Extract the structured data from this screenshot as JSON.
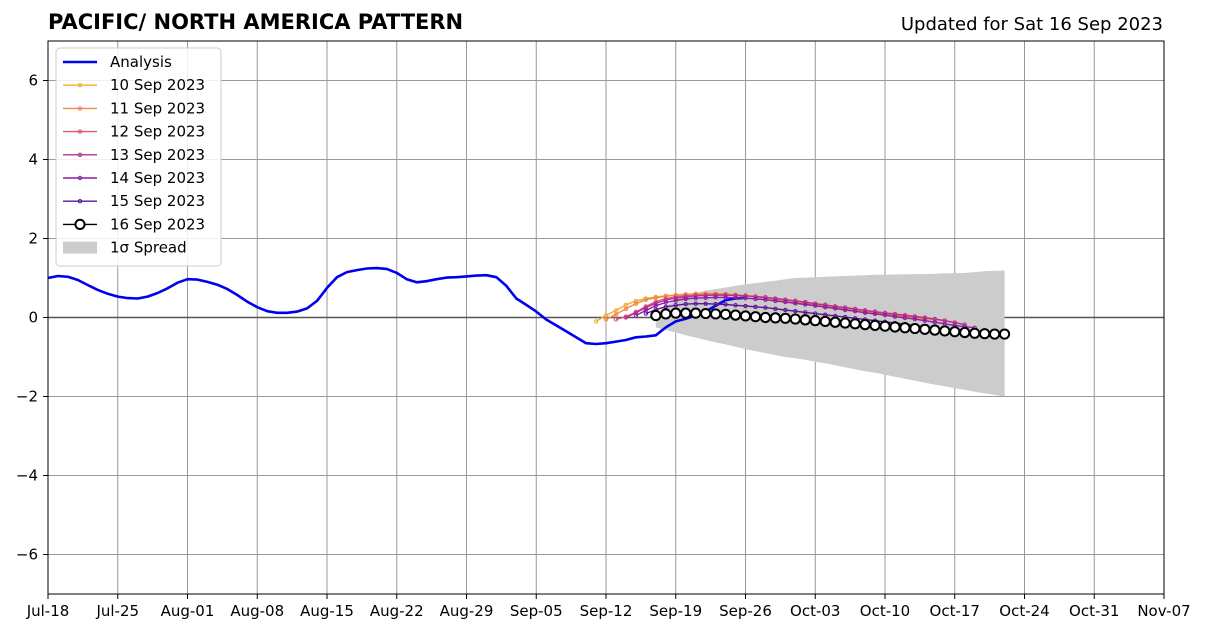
{
  "chart_data": {
    "type": "line",
    "title": "PACIFIC/ NORTH AMERICA PATTERN",
    "subtitle": "Updated for Sat 16 Sep 2023",
    "xlabel": "",
    "ylabel": "",
    "xlim": [
      "2023-07-18",
      "2023-11-07"
    ],
    "ylim": [
      -7,
      7
    ],
    "x_ticks": [
      "Jul-18",
      "Jul-25",
      "Aug-01",
      "Aug-08",
      "Aug-15",
      "Aug-22",
      "Aug-29",
      "Sep-05",
      "Sep-12",
      "Sep-19",
      "Sep-26",
      "Oct-03",
      "Oct-10",
      "Oct-17",
      "Oct-24",
      "Oct-31",
      "Nov-07"
    ],
    "y_ticks": [
      "6",
      "4",
      "2",
      "0",
      "−2",
      "−4",
      "−6"
    ],
    "y_tick_values": [
      6,
      4,
      2,
      0,
      -2,
      -4,
      -6
    ],
    "grid": true,
    "legend_position": "top-left",
    "analysis": {
      "name": "Analysis",
      "color": "#0000ee",
      "start": "2023-07-18",
      "values": [
        1.0,
        1.05,
        1.03,
        0.95,
        0.82,
        0.7,
        0.6,
        0.53,
        0.49,
        0.48,
        0.53,
        0.62,
        0.74,
        0.88,
        0.97,
        0.96,
        0.9,
        0.83,
        0.72,
        0.57,
        0.4,
        0.26,
        0.16,
        0.12,
        0.12,
        0.15,
        0.23,
        0.42,
        0.75,
        1.02,
        1.15,
        1.2,
        1.24,
        1.25,
        1.23,
        1.13,
        0.97,
        0.89,
        0.92,
        0.97,
        1.01,
        1.02,
        1.04,
        1.06,
        1.07,
        1.02,
        0.8,
        0.48,
        0.32,
        0.15,
        -0.05,
        -0.2,
        -0.35,
        -0.5,
        -0.65,
        -0.67,
        -0.65,
        -0.61,
        -0.57,
        -0.5,
        -0.48,
        -0.45,
        -0.25,
        -0.1,
        -0.03,
        0.05,
        0.15,
        0.3,
        0.44,
        0.48,
        0.5
      ]
    },
    "forecasts": [
      {
        "name": "10 Sep 2023",
        "color": "#f5ac34",
        "start": "2023-09-11",
        "values": [
          -0.1,
          0.05,
          0.18,
          0.32,
          0.42,
          0.48,
          0.52,
          0.55,
          0.57,
          0.59,
          0.6,
          0.61,
          0.61,
          0.6,
          0.58,
          0.56,
          0.53,
          0.5,
          0.46,
          0.42,
          0.38,
          0.35,
          0.32,
          0.28,
          0.24,
          0.21,
          0.17,
          0.14,
          0.1,
          0.07,
          0.04,
          0.01,
          -0.02,
          -0.04,
          -0.06
        ]
      },
      {
        "name": "11 Sep 2023",
        "color": "#f0884a",
        "start": "2023-09-12",
        "values": [
          -0.05,
          0.08,
          0.22,
          0.35,
          0.45,
          0.5,
          0.54,
          0.56,
          0.58,
          0.6,
          0.6,
          0.6,
          0.59,
          0.57,
          0.55,
          0.52,
          0.49,
          0.46,
          0.42,
          0.39,
          0.35,
          0.32,
          0.28,
          0.25,
          0.21,
          0.18,
          0.15,
          0.12,
          0.09,
          0.06,
          0.03,
          0.0,
          -0.02,
          -0.05,
          -0.08
        ]
      },
      {
        "name": "12 Sep 2023",
        "color": "#dc5a72",
        "start": "2023-09-13",
        "values": [
          -0.05,
          0.02,
          0.14,
          0.28,
          0.4,
          0.48,
          0.52,
          0.55,
          0.56,
          0.57,
          0.57,
          0.57,
          0.56,
          0.55,
          0.53,
          0.51,
          0.48,
          0.45,
          0.42,
          0.38,
          0.35,
          0.32,
          0.28,
          0.25,
          0.22,
          0.18,
          0.15,
          0.12,
          0.09,
          0.06,
          0.03,
          0.0,
          -0.04,
          -0.08,
          -0.13
        ]
      },
      {
        "name": "13 Sep 2023",
        "color": "#b8308e",
        "start": "2023-09-14",
        "values": [
          0.0,
          0.12,
          0.25,
          0.36,
          0.44,
          0.49,
          0.52,
          0.55,
          0.56,
          0.57,
          0.57,
          0.56,
          0.55,
          0.53,
          0.51,
          0.48,
          0.45,
          0.42,
          0.39,
          0.35,
          0.32,
          0.28,
          0.25,
          0.21,
          0.18,
          0.14,
          0.11,
          0.08,
          0.05,
          0.02,
          -0.01,
          -0.04,
          -0.08,
          -0.13,
          -0.18
        ]
      },
      {
        "name": "14 Sep 2023",
        "color": "#8c1ca8",
        "start": "2023-09-15",
        "values": [
          0.05,
          0.18,
          0.3,
          0.38,
          0.43,
          0.47,
          0.49,
          0.5,
          0.51,
          0.51,
          0.5,
          0.49,
          0.47,
          0.45,
          0.42,
          0.39,
          0.36,
          0.33,
          0.3,
          0.26,
          0.23,
          0.19,
          0.16,
          0.12,
          0.09,
          0.06,
          0.02,
          -0.01,
          -0.04,
          -0.08,
          -0.12,
          -0.16,
          -0.2,
          -0.23,
          -0.26
        ]
      },
      {
        "name": "15 Sep 2023",
        "color": "#5c1497",
        "start": "2023-09-16",
        "values": [
          0.1,
          0.2,
          0.27,
          0.31,
          0.34,
          0.35,
          0.35,
          0.34,
          0.33,
          0.31,
          0.29,
          0.27,
          0.25,
          0.22,
          0.19,
          0.16,
          0.13,
          0.1,
          0.07,
          0.04,
          0.01,
          -0.02,
          -0.05,
          -0.08,
          -0.11,
          -0.14,
          -0.17,
          -0.2,
          -0.23,
          -0.26,
          -0.29,
          -0.32,
          -0.34,
          -0.36,
          -0.38
        ]
      },
      {
        "name": "16 Sep 2023",
        "color": "#000000",
        "start": "2023-09-17",
        "values": [
          0.05,
          0.09,
          0.11,
          0.11,
          0.11,
          0.1,
          0.09,
          0.08,
          0.06,
          0.04,
          0.02,
          0.0,
          -0.01,
          -0.02,
          -0.04,
          -0.06,
          -0.08,
          -0.1,
          -0.12,
          -0.14,
          -0.16,
          -0.18,
          -0.2,
          -0.22,
          -0.24,
          -0.26,
          -0.28,
          -0.3,
          -0.32,
          -0.34,
          -0.36,
          -0.38,
          -0.4,
          -0.41,
          -0.42,
          -0.42
        ]
      }
    ],
    "spread": {
      "name": "1σ Spread",
      "color": "#cccccc",
      "start": "2023-09-17",
      "upper": [
        0.08,
        0.3,
        0.45,
        0.55,
        0.62,
        0.68,
        0.72,
        0.76,
        0.8,
        0.84,
        0.87,
        0.9,
        0.93,
        0.97,
        1.0,
        1.01,
        1.02,
        1.03,
        1.04,
        1.05,
        1.06,
        1.07,
        1.08,
        1.08,
        1.09,
        1.09,
        1.1,
        1.1,
        1.11,
        1.12,
        1.12,
        1.13,
        1.15,
        1.17,
        1.18,
        1.19
      ],
      "lower": [
        -0.25,
        -0.32,
        -0.38,
        -0.45,
        -0.51,
        -0.57,
        -0.63,
        -0.68,
        -0.74,
        -0.8,
        -0.85,
        -0.9,
        -0.95,
        -1.0,
        -1.03,
        -1.07,
        -1.12,
        -1.16,
        -1.21,
        -1.26,
        -1.31,
        -1.36,
        -1.4,
        -1.45,
        -1.5,
        -1.55,
        -1.6,
        -1.65,
        -1.7,
        -1.74,
        -1.79,
        -1.83,
        -1.88,
        -1.92,
        -1.96,
        -2.0
      ]
    }
  }
}
